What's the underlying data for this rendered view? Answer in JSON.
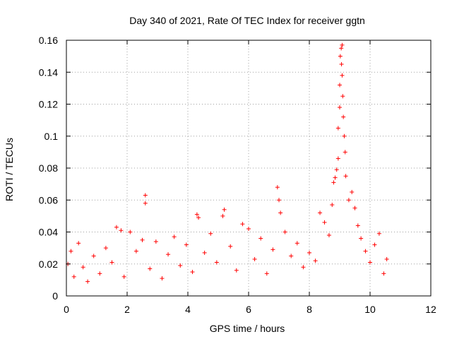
{
  "chart_data": {
    "type": "scatter",
    "title": "Day 340 of 2021, Rate Of TEC Index for receiver ggtn",
    "xlabel": "GPS time / hours",
    "ylabel": "ROTI / TECUs",
    "xlim": [
      0,
      12
    ],
    "ylim": [
      0,
      0.16
    ],
    "xticks": [
      0,
      2,
      4,
      6,
      8,
      10,
      12
    ],
    "xtick_labels": [
      "0",
      "2",
      "4",
      "6",
      "8",
      "10",
      "12"
    ],
    "yticks": [
      0,
      0.02,
      0.04,
      0.06,
      0.08,
      0.1,
      0.12,
      0.14,
      0.16
    ],
    "ytick_labels": [
      "0",
      "0.02",
      "0.04",
      "0.06",
      "0.08",
      "0.1",
      "0.12",
      "0.14",
      "0.16"
    ],
    "grid": true,
    "marker": "+",
    "series": [
      {
        "name": "ROTI",
        "color": "#ff0000",
        "points": [
          [
            0.05,
            0.02
          ],
          [
            0.15,
            0.028
          ],
          [
            0.25,
            0.012
          ],
          [
            0.4,
            0.033
          ],
          [
            0.55,
            0.018
          ],
          [
            0.7,
            0.009
          ],
          [
            0.9,
            0.025
          ],
          [
            1.1,
            0.014
          ],
          [
            1.3,
            0.03
          ],
          [
            1.5,
            0.021
          ],
          [
            1.65,
            0.043
          ],
          [
            1.8,
            0.041
          ],
          [
            1.9,
            0.012
          ],
          [
            2.1,
            0.04
          ],
          [
            2.3,
            0.028
          ],
          [
            2.5,
            0.035
          ],
          [
            2.6,
            0.063
          ],
          [
            2.6,
            0.058
          ],
          [
            2.75,
            0.017
          ],
          [
            2.95,
            0.034
          ],
          [
            3.15,
            0.011
          ],
          [
            3.35,
            0.026
          ],
          [
            3.55,
            0.037
          ],
          [
            3.75,
            0.019
          ],
          [
            3.95,
            0.032
          ],
          [
            4.15,
            0.015
          ],
          [
            4.3,
            0.051
          ],
          [
            4.35,
            0.049
          ],
          [
            4.55,
            0.027
          ],
          [
            4.75,
            0.039
          ],
          [
            4.95,
            0.021
          ],
          [
            5.15,
            0.05
          ],
          [
            5.2,
            0.054
          ],
          [
            5.4,
            0.031
          ],
          [
            5.6,
            0.016
          ],
          [
            5.8,
            0.045
          ],
          [
            6.0,
            0.042
          ],
          [
            6.2,
            0.023
          ],
          [
            6.4,
            0.036
          ],
          [
            6.6,
            0.014
          ],
          [
            6.8,
            0.029
          ],
          [
            6.95,
            0.068
          ],
          [
            7.0,
            0.06
          ],
          [
            7.05,
            0.052
          ],
          [
            7.2,
            0.04
          ],
          [
            7.4,
            0.025
          ],
          [
            7.6,
            0.033
          ],
          [
            7.8,
            0.018
          ],
          [
            8.0,
            0.027
          ],
          [
            8.2,
            0.022
          ],
          [
            8.35,
            0.052
          ],
          [
            8.5,
            0.046
          ],
          [
            8.65,
            0.038
          ],
          [
            8.75,
            0.057
          ],
          [
            8.8,
            0.071
          ],
          [
            8.85,
            0.074
          ],
          [
            8.9,
            0.079
          ],
          [
            8.95,
            0.086
          ],
          [
            8.95,
            0.105
          ],
          [
            9.0,
            0.118
          ],
          [
            9.0,
            0.132
          ],
          [
            9.02,
            0.15
          ],
          [
            9.05,
            0.155
          ],
          [
            9.08,
            0.157
          ],
          [
            9.06,
            0.145
          ],
          [
            9.08,
            0.138
          ],
          [
            9.1,
            0.125
          ],
          [
            9.12,
            0.112
          ],
          [
            9.15,
            0.1
          ],
          [
            9.18,
            0.09
          ],
          [
            9.2,
            0.075
          ],
          [
            9.3,
            0.06
          ],
          [
            9.4,
            0.065
          ],
          [
            9.5,
            0.055
          ],
          [
            9.6,
            0.044
          ],
          [
            9.7,
            0.036
          ],
          [
            9.85,
            0.028
          ],
          [
            10.0,
            0.021
          ],
          [
            10.15,
            0.032
          ],
          [
            10.3,
            0.039
          ],
          [
            10.45,
            0.014
          ],
          [
            10.55,
            0.023
          ]
        ]
      }
    ]
  }
}
